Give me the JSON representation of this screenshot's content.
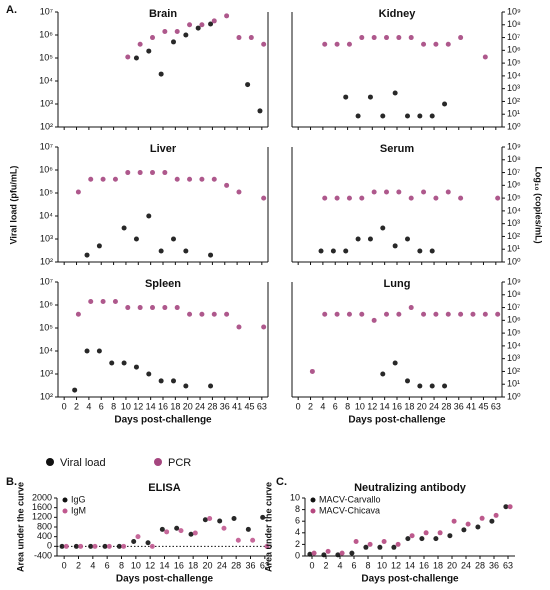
{
  "panel_labels": [
    "A.",
    "B.",
    "C."
  ],
  "y_label": "Viral load (pfu/mL)",
  "y2_label": "Log₁₀ (copies/mL)",
  "chart_data": [
    {
      "type": "scatter",
      "title": "Brain",
      "log_scale": true,
      "ylim": [
        100,
        10000000
      ],
      "y2lim": [
        1,
        1000000000
      ],
      "yticks": [
        {
          "value": 100,
          "label": "10²"
        },
        {
          "value": 1000,
          "label": "10³"
        },
        {
          "value": 10000,
          "label": "10⁴"
        },
        {
          "value": 100000,
          "label": "10⁵"
        },
        {
          "value": 1000000,
          "label": "10⁶"
        },
        {
          "value": 10000000,
          "label": "10⁷"
        }
      ],
      "series": [
        {
          "name": "Viral load",
          "color": "#111111",
          "values": [
            null,
            null,
            null,
            null,
            null,
            null,
            100000,
            200000,
            20000,
            500000,
            1000000,
            2000000,
            3000000,
            null,
            null,
            7000,
            500
          ]
        },
        {
          "name": "PCR",
          "color": "#a5467f",
          "axis": "y2",
          "values": [
            null,
            null,
            null,
            null,
            null,
            300000,
            3000000,
            10000000,
            30000000,
            30000000,
            100000000,
            100000000,
            200000000,
            500000000,
            10000000,
            10000000,
            3000000
          ]
        }
      ]
    },
    {
      "type": "scatter",
      "title": "Kidney",
      "log_scale": true,
      "ylim": [
        100,
        10000000
      ],
      "y2lim": [
        1,
        1000000000
      ],
      "y2ticks": [
        {
          "value": 1,
          "label": "10⁰"
        },
        {
          "value": 10,
          "label": "10¹"
        },
        {
          "value": 100,
          "label": "10²"
        },
        {
          "value": 1000,
          "label": "10³"
        },
        {
          "value": 10000,
          "label": "10⁴"
        },
        {
          "value": 100000,
          "label": "10⁵"
        },
        {
          "value": 1000000,
          "label": "10⁶"
        },
        {
          "value": 10000000,
          "label": "10⁷"
        },
        {
          "value": 100000000,
          "label": "10⁸"
        },
        {
          "value": 1000000000,
          "label": "10⁹"
        }
      ],
      "series": [
        {
          "name": "Viral load",
          "color": "#111111",
          "values": [
            null,
            null,
            null,
            null,
            2000,
            300,
            2000,
            300,
            3000,
            300,
            300,
            300,
            1000,
            null,
            null,
            null,
            null
          ]
        },
        {
          "name": "PCR",
          "color": "#a5467f",
          "axis": "y2",
          "values": [
            null,
            null,
            3000000,
            3000000,
            3000000,
            10000000,
            10000000,
            10000000,
            10000000,
            10000000,
            3000000,
            3000000,
            3000000,
            10000000,
            null,
            300000,
            null
          ]
        }
      ]
    },
    {
      "type": "scatter",
      "title": "Liver",
      "log_scale": true,
      "ylim": [
        100,
        10000000
      ],
      "y2lim": [
        1,
        1000000000
      ],
      "yticks": [
        {
          "value": 100,
          "label": "10²"
        },
        {
          "value": 1000,
          "label": "10³"
        },
        {
          "value": 10000,
          "label": "10⁴"
        },
        {
          "value": 100000,
          "label": "10⁵"
        },
        {
          "value": 1000000,
          "label": "10⁶"
        },
        {
          "value": 10000000,
          "label": "10⁷"
        }
      ],
      "series": [
        {
          "name": "Viral load",
          "color": "#111111",
          "values": [
            null,
            null,
            200,
            500,
            null,
            3000,
            1000,
            10000,
            300,
            1000,
            300,
            null,
            200,
            null,
            null,
            null,
            null
          ]
        },
        {
          "name": "PCR",
          "color": "#a5467f",
          "axis": "y2",
          "values": [
            null,
            300000,
            3000000,
            3000000,
            3000000,
            10000000,
            10000000,
            10000000,
            10000000,
            3000000,
            3000000,
            3000000,
            3000000,
            1000000,
            300000,
            null,
            100000
          ]
        }
      ]
    },
    {
      "type": "scatter",
      "title": "Serum",
      "log_scale": true,
      "ylim": [
        100,
        10000000
      ],
      "y2lim": [
        1,
        1000000000
      ],
      "y2ticks": [
        {
          "value": 1,
          "label": "10⁰"
        },
        {
          "value": 10,
          "label": "10¹"
        },
        {
          "value": 100,
          "label": "10²"
        },
        {
          "value": 1000,
          "label": "10³"
        },
        {
          "value": 10000,
          "label": "10⁴"
        },
        {
          "value": 100000,
          "label": "10⁵"
        },
        {
          "value": 1000000,
          "label": "10⁶"
        },
        {
          "value": 10000000,
          "label": "10⁷"
        },
        {
          "value": 100000000,
          "label": "10⁸"
        },
        {
          "value": 1000000000,
          "label": "10⁹"
        }
      ],
      "series": [
        {
          "name": "Viral load",
          "color": "#111111",
          "values": [
            null,
            null,
            300,
            300,
            300,
            1000,
            1000,
            3000,
            500,
            1000,
            300,
            300,
            null,
            null,
            null,
            null,
            null
          ]
        },
        {
          "name": "PCR",
          "color": "#a5467f",
          "axis": "y2",
          "values": [
            null,
            null,
            100000,
            100000,
            100000,
            100000,
            300000,
            300000,
            300000,
            100000,
            300000,
            100000,
            300000,
            100000,
            null,
            null,
            100000
          ]
        }
      ]
    },
    {
      "type": "scatter",
      "title": "Spleen",
      "log_scale": true,
      "ylim": [
        100,
        10000000
      ],
      "y2lim": [
        1,
        1000000000
      ],
      "yticks": [
        {
          "value": 100,
          "label": "10²"
        },
        {
          "value": 1000,
          "label": "10³"
        },
        {
          "value": 10000,
          "label": "10⁴"
        },
        {
          "value": 100000,
          "label": "10⁵"
        },
        {
          "value": 1000000,
          "label": "10⁶"
        },
        {
          "value": 10000000,
          "label": "10⁷"
        }
      ],
      "categories": [
        "0",
        "2",
        "4",
        "6",
        "8",
        "10",
        "12",
        "14",
        "16",
        "18",
        "20",
        "24",
        "28",
        "36",
        "41",
        "45",
        "63"
      ],
      "x_label": "Days post-challenge",
      "series": [
        {
          "name": "Viral load",
          "color": "#111111",
          "values": [
            null,
            200,
            10000,
            10000,
            3000,
            3000,
            2000,
            1000,
            500,
            500,
            300,
            null,
            300,
            null,
            null,
            null,
            null
          ]
        },
        {
          "name": "PCR",
          "color": "#a5467f",
          "axis": "y2",
          "values": [
            null,
            3000000,
            30000000,
            30000000,
            30000000,
            10000000,
            10000000,
            10000000,
            10000000,
            10000000,
            3000000,
            3000000,
            3000000,
            3000000,
            300000,
            null,
            300000
          ]
        }
      ]
    },
    {
      "type": "scatter",
      "title": "Lung",
      "log_scale": true,
      "ylim": [
        100,
        10000000
      ],
      "y2lim": [
        1,
        1000000000
      ],
      "y2ticks": [
        {
          "value": 1,
          "label": "10⁰"
        },
        {
          "value": 10,
          "label": "10¹"
        },
        {
          "value": 100,
          "label": "10²"
        },
        {
          "value": 1000,
          "label": "10³"
        },
        {
          "value": 10000,
          "label": "10⁴"
        },
        {
          "value": 100000,
          "label": "10⁵"
        },
        {
          "value": 1000000,
          "label": "10⁶"
        },
        {
          "value": 10000000,
          "label": "10⁷"
        },
        {
          "value": 100000000,
          "label": "10⁸"
        },
        {
          "value": 1000000000,
          "label": "10⁹"
        }
      ],
      "categories": [
        "0",
        "2",
        "4",
        "6",
        "8",
        "10",
        "12",
        "14",
        "16",
        "18",
        "20",
        "24",
        "28",
        "36",
        "41",
        "45",
        "63"
      ],
      "x_label": "Days post-challenge",
      "series": [
        {
          "name": "Viral load",
          "color": "#111111",
          "values": [
            null,
            null,
            null,
            null,
            null,
            null,
            null,
            1000,
            3000,
            500,
            300,
            300,
            300,
            null,
            null,
            null,
            null
          ]
        },
        {
          "name": "PCR",
          "color": "#a5467f",
          "axis": "y2",
          "values": [
            null,
            100,
            3000000,
            3000000,
            3000000,
            3000000,
            1000000,
            3000000,
            3000000,
            10000000,
            3000000,
            3000000,
            3000000,
            3000000,
            3000000,
            3000000,
            3000000
          ]
        }
      ]
    },
    {
      "type": "scatter",
      "title": "ELISA",
      "y_label": "Area under the curve",
      "x_label": "Days post-challenge",
      "ylim": [
        -400,
        2000
      ],
      "yticks": [
        -400,
        0,
        400,
        800,
        1200,
        1600,
        2000
      ],
      "categories": [
        "0",
        "2",
        "4",
        "6",
        "8",
        "10",
        "12",
        "14",
        "16",
        "18",
        "20",
        "24",
        "28",
        "36",
        "63"
      ],
      "series": [
        {
          "name": "IgG",
          "color": "#111111",
          "values": [
            0,
            0,
            0,
            0,
            0,
            200,
            150,
            700,
            750,
            500,
            1100,
            1050,
            1150,
            700,
            1200
          ]
        },
        {
          "name": "IgM",
          "color": "#c0588f",
          "values": [
            0,
            0,
            0,
            0,
            0,
            400,
            0,
            600,
            650,
            550,
            1150,
            750,
            250,
            250,
            0
          ]
        }
      ]
    },
    {
      "type": "scatter",
      "title": "Neutralizing antibody",
      "y_label": "Area under the curve",
      "x_label": "Days post-challenge",
      "ylim": [
        0,
        10
      ],
      "yticks": [
        0,
        2,
        4,
        6,
        8,
        10
      ],
      "categories": [
        "0",
        "2",
        "4",
        "6",
        "8",
        "10",
        "12",
        "14",
        "16",
        "18",
        "20",
        "24",
        "28",
        "36",
        "63"
      ],
      "series": [
        {
          "name": "MACV-Carvallo",
          "color": "#111111",
          "values": [
            0.3,
            0.2,
            0.2,
            0.5,
            1.5,
            1.5,
            1.5,
            3,
            3,
            3,
            3.5,
            4.5,
            5,
            6,
            8.5
          ]
        },
        {
          "name": "MACV-Chicava",
          "color": "#b5477f",
          "values": [
            0.5,
            0.8,
            0.5,
            2.5,
            2,
            2.5,
            2,
            3.5,
            4,
            4,
            6,
            5.5,
            6.5,
            7,
            8.5
          ]
        }
      ]
    }
  ]
}
